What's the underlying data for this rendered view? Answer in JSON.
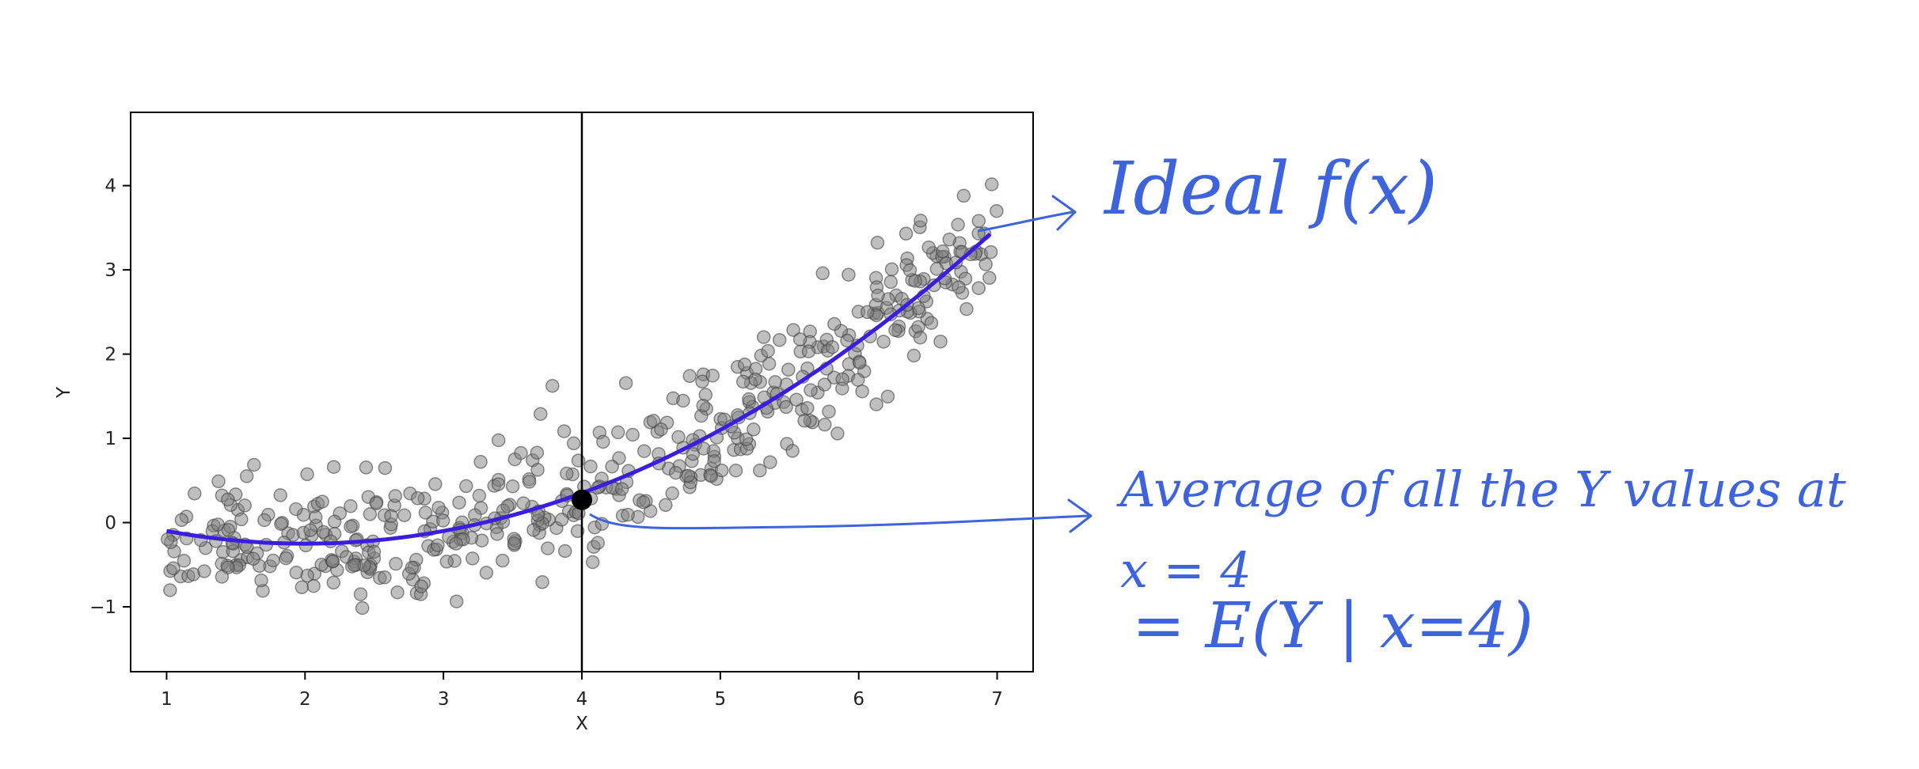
{
  "chart_data": {
    "type": "scatter",
    "title": "",
    "xlabel": "X",
    "ylabel": "Y",
    "xlim": [
      0.74,
      7.26
    ],
    "ylim": [
      -1.77,
      4.87
    ],
    "xticks": [
      1,
      2,
      3,
      4,
      5,
      6,
      7
    ],
    "yticks": [
      -1,
      0,
      1,
      2,
      3,
      4
    ],
    "xtick_labels": [
      "1",
      "2",
      "3",
      "4",
      "5",
      "6",
      "7"
    ],
    "ytick_labels": [
      "−1",
      "0",
      "1",
      "2",
      "3",
      "4"
    ],
    "grid": false,
    "point_color": "#808080",
    "curve_color": "#3b1de0",
    "annotation_color": "#3d63dd",
    "scatter_x_range": [
      1.0,
      7.0
    ],
    "scatter_count": 500,
    "ideal_curve": {
      "x_range": [
        1.0,
        6.95
      ],
      "formula": "0.15*x^2 - 0.6*x + 0.35"
    },
    "vline_x": 4,
    "highlight_point": {
      "x": 4.0,
      "y": 0.27
    },
    "annotations": {
      "ideal": "Ideal f(x)",
      "average_line1": "Average of all the Y values at",
      "average_line2": "x = 4",
      "average_line3": "=   E(Y | x=4)"
    }
  }
}
